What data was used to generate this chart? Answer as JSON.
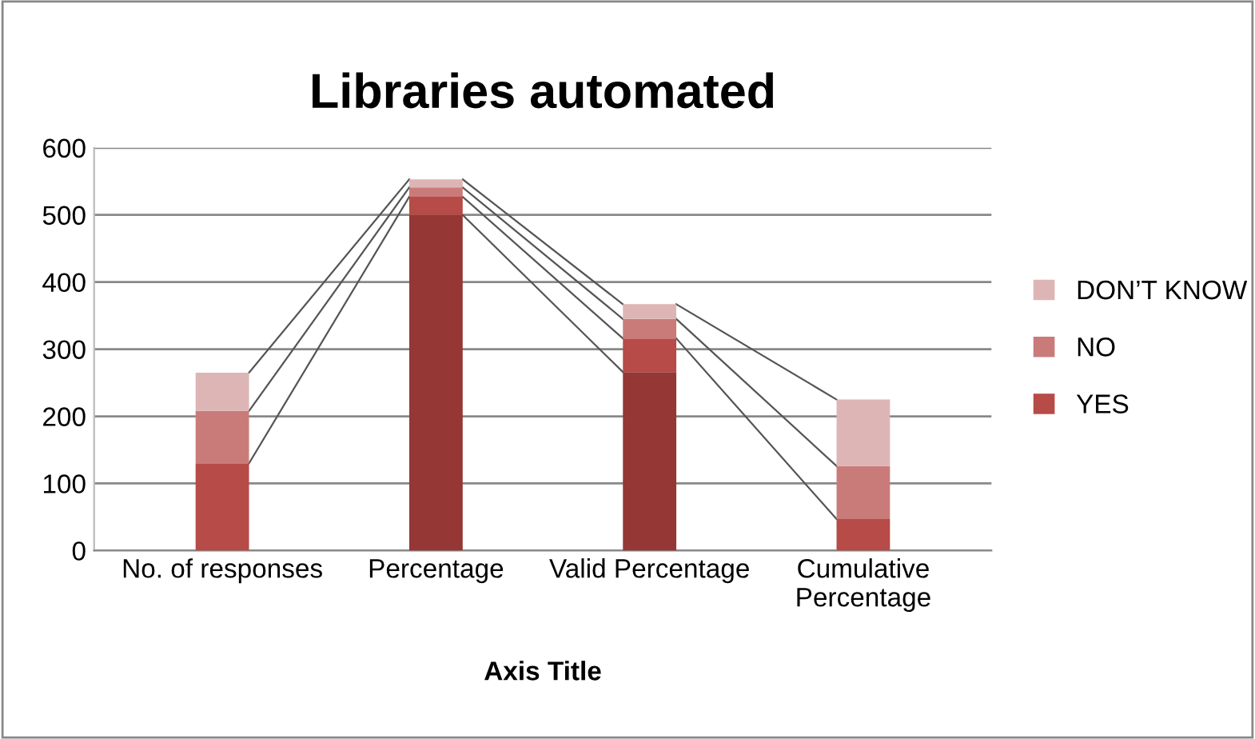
{
  "chart_data": {
    "type": "bar",
    "title": "Libraries automated",
    "xlabel": "Axis Title",
    "categories": [
      "No. of responses",
      "Percentage",
      "Valid Percentage",
      "Cumulative\nPercentage"
    ],
    "stacked": true,
    "ylim": [
      0,
      600
    ],
    "yticks": [
      0,
      100,
      200,
      300,
      400,
      500,
      600
    ],
    "grid": "y",
    "legend": "right",
    "series": [
      {
        "color": "#953735",
        "values": [
          0,
          500,
          266,
          0
        ]
      },
      {
        "name": "YES",
        "color": "#b64b47",
        "values": [
          130,
          27,
          50,
          47
        ]
      },
      {
        "name": "NO",
        "color": "#c97b7a",
        "values": [
          78,
          14,
          29,
          79
        ]
      },
      {
        "name": "DON’T KNOW",
        "color": "#deb5b5",
        "values": [
          57,
          12,
          22,
          99
        ]
      }
    ]
  }
}
